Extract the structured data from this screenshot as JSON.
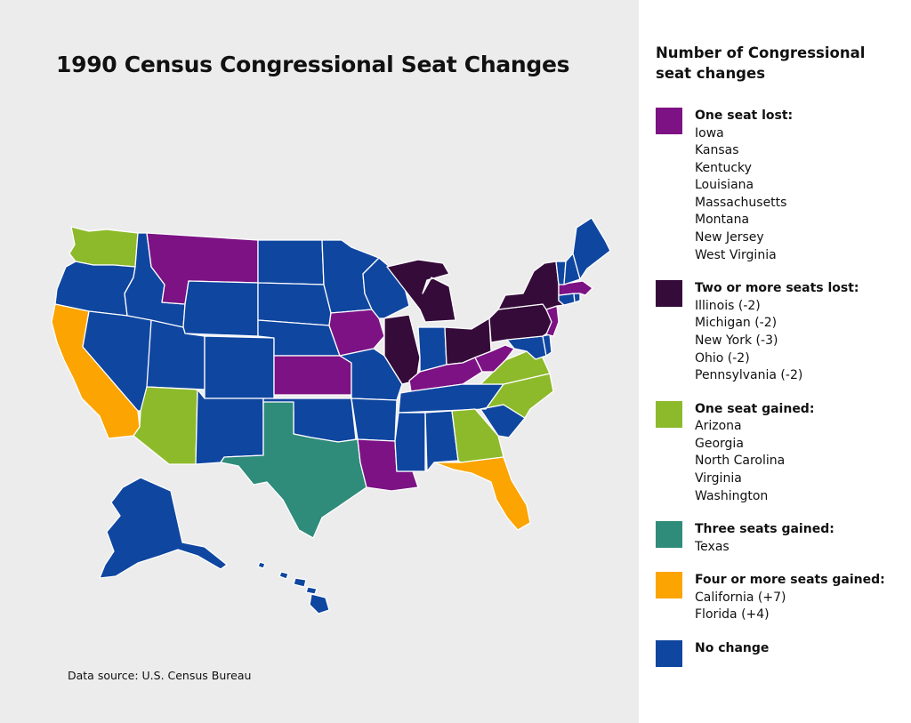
{
  "title": "1990 Census Congressional Seat Changes",
  "source": "Data source: U.S. Census Bureau",
  "colors": {
    "one_lost": "#7c1284",
    "two_lost": "#350b3a",
    "one_gained": "#8dba2b",
    "three_gained": "#2f8b7a",
    "four_gained": "#fba402",
    "no_change": "#0f46a0"
  },
  "legend": {
    "title": "Number of Congressional seat changes",
    "groups": [
      {
        "key": "one_lost",
        "label": "One seat lost:",
        "items": [
          "Iowa",
          "Kansas",
          "Kentucky",
          "Louisiana",
          "Massachusetts",
          "Montana",
          "New Jersey",
          "West Virginia"
        ]
      },
      {
        "key": "two_lost",
        "label": "Two or more seats lost:",
        "items": [
          "Illinois (-2)",
          "Michigan (-2)",
          "New York (-3)",
          "Ohio (-2)",
          "Pennsylvania (-2)"
        ]
      },
      {
        "key": "one_gained",
        "label": "One seat gained:",
        "items": [
          "Arizona",
          "Georgia",
          "North Carolina",
          "Virginia",
          "Washington"
        ]
      },
      {
        "key": "three_gained",
        "label": "Three seats gained:",
        "items": [
          "Texas"
        ]
      },
      {
        "key": "four_gained",
        "label": "Four or more seats gained:",
        "items": [
          "California (+7)",
          "Florida (+4)"
        ]
      },
      {
        "key": "no_change",
        "label": "No change",
        "items": []
      }
    ]
  },
  "states": {
    "WA": "one_gained",
    "OR": "no_change",
    "CA": "four_gained",
    "ID": "no_change",
    "NV": "no_change",
    "MT": "one_lost",
    "WY": "no_change",
    "UT": "no_change",
    "AZ": "one_gained",
    "CO": "no_change",
    "NM": "no_change",
    "ND": "no_change",
    "SD": "no_change",
    "NE": "no_change",
    "KS": "one_lost",
    "OK": "no_change",
    "TX": "three_gained",
    "MN": "no_change",
    "IA": "one_lost",
    "MO": "no_change",
    "AR": "no_change",
    "LA": "one_lost",
    "WI": "no_change",
    "IL": "two_lost",
    "MI": "two_lost",
    "IN": "no_change",
    "OH": "two_lost",
    "KY": "one_lost",
    "TN": "no_change",
    "MS": "no_change",
    "AL": "no_change",
    "GA": "one_gained",
    "FL": "four_gained",
    "SC": "no_change",
    "NC": "one_gained",
    "VA": "one_gained",
    "WV": "one_lost",
    "MD": "no_change",
    "DE": "no_change",
    "PA": "two_lost",
    "NJ": "one_lost",
    "NY": "two_lost",
    "CT": "no_change",
    "RI": "no_change",
    "MA": "one_lost",
    "VT": "no_change",
    "NH": "no_change",
    "ME": "no_change",
    "AK": "no_change",
    "HI": "no_change"
  }
}
